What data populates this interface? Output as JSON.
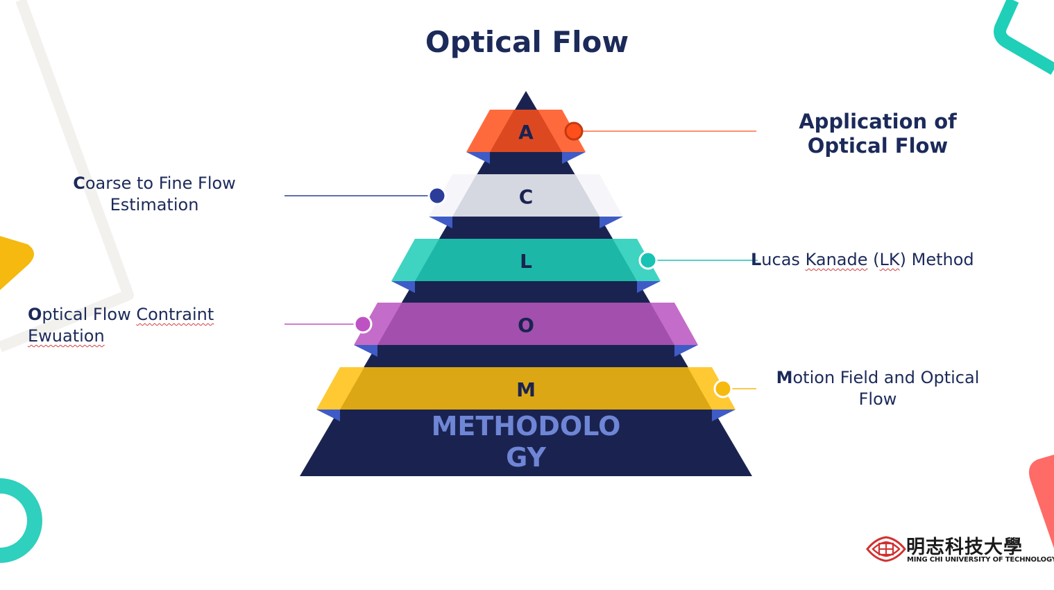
{
  "slide": {
    "title": "Optical Flow"
  },
  "pyramid": {
    "base_label_line1": "METHODOLO",
    "base_label_line2": "GY",
    "levels": [
      {
        "letter": "A",
        "color": "#ff6a3d",
        "dot": "#ff4f1a"
      },
      {
        "letter": "C",
        "color": "#d5d8e0",
        "dot": "#2b3d99"
      },
      {
        "letter": "L",
        "color": "#1db7a8",
        "dot": "#19c3b4"
      },
      {
        "letter": "O",
        "color": "#a24fad",
        "dot": "#be52c4"
      },
      {
        "letter": "M",
        "color": "#e3ab16",
        "dot": "#f6b90e"
      }
    ]
  },
  "labels": {
    "a_line1": "Application of",
    "a_line2": "Optical Flow",
    "c_initial": "C",
    "c_rest": "oarse to Fine Flow",
    "c_line2": "Estimation",
    "l_initial": "L",
    "l_word": "ucas",
    "l_kanade": "Kanade",
    "l_lk_open": "(",
    "l_lk": "LK",
    "l_lk_close": ")",
    "l_method": "Method",
    "o_initial": "O",
    "o_rest1": "ptical Flow ",
    "o_contraint": "Contraint",
    "o_line2": "Ewuation",
    "m_initial": "M",
    "m_rest": "otion Field and Optical",
    "m_line2": "Flow"
  },
  "logo": {
    "chinese": "明志科技大學",
    "english": "MING CHI UNIVERSITY OF TECHNOLOGY"
  },
  "colors": {
    "navy": "#1a2350",
    "text": "#1c2a5a",
    "base_text": "#6f86d6",
    "fold": "#3f5bc6"
  }
}
